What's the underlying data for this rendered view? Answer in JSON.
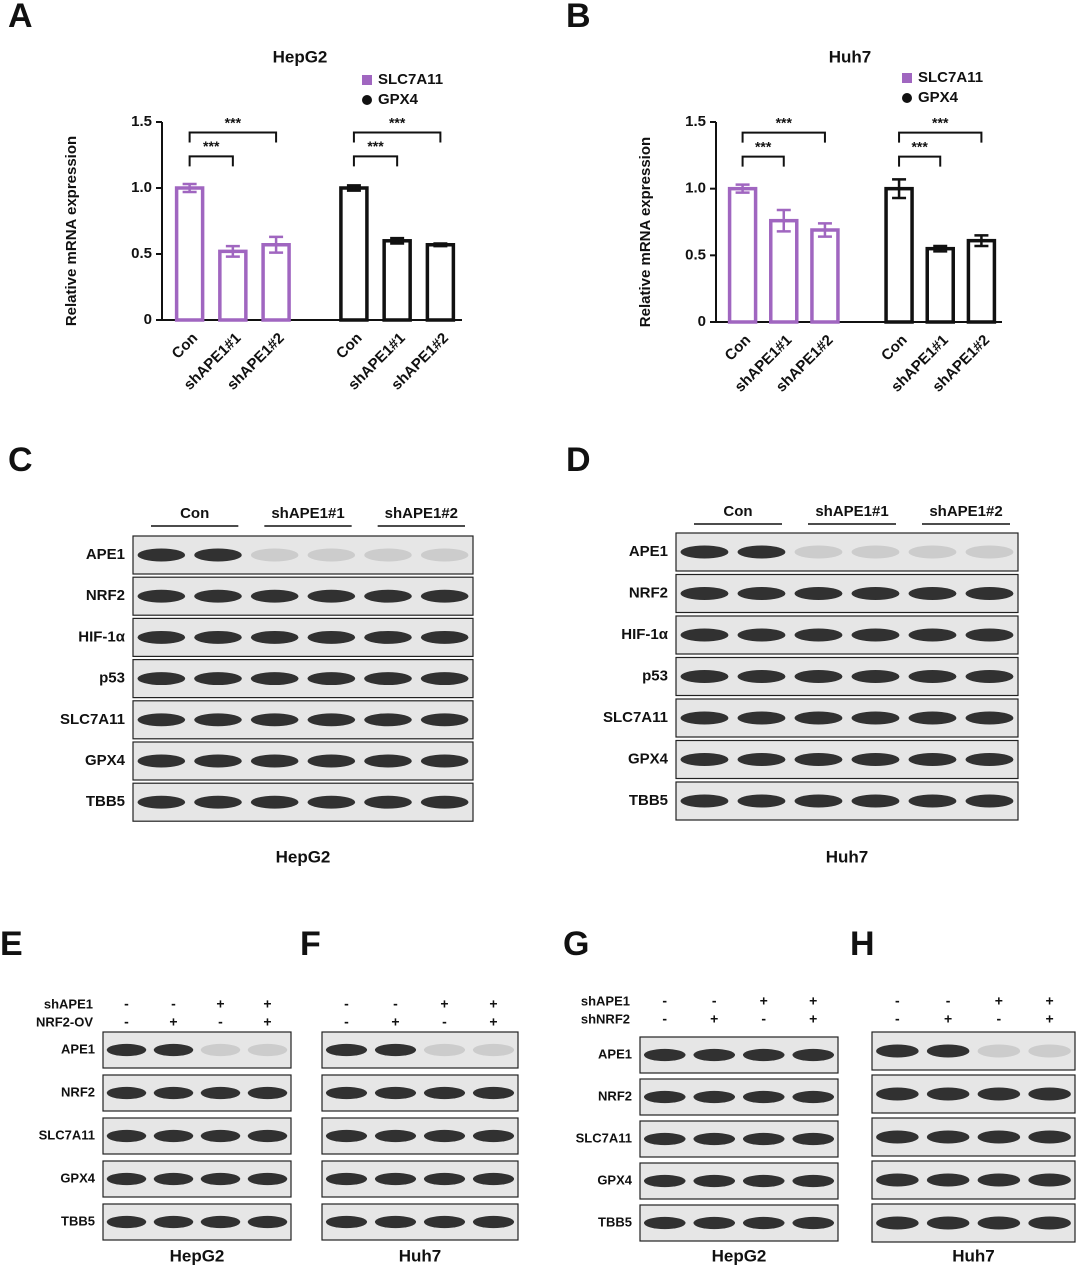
{
  "chart_data": [
    {
      "type": "bar",
      "title": "HepG2",
      "ylabel": "Relative mRNA expression",
      "categories": [
        "Con",
        "shAPE1#1",
        "shAPE1#2",
        "Con",
        "shAPE1#1",
        "shAPE1#2"
      ],
      "series": [
        {
          "name": "SLC7A11",
          "color": "#a066c0",
          "marker": "square",
          "values": [
            1.0,
            0.52,
            0.57,
            null,
            null,
            null
          ],
          "errors": [
            0.03,
            0.04,
            0.06,
            null,
            null,
            null
          ]
        },
        {
          "name": "GPX4",
          "color": "#111111",
          "marker": "circle",
          "values": [
            null,
            null,
            null,
            1.0,
            0.6,
            0.57
          ],
          "errors": [
            null,
            null,
            null,
            0.02,
            0.02,
            0.01
          ]
        }
      ],
      "ylim": [
        0,
        1.5
      ],
      "yticks": [
        0,
        0.5,
        {
          "value": 1,
          "label": "1.0"
        },
        1.5
      ],
      "annotations": [
        "***",
        "***",
        "***",
        "***"
      ]
    },
    {
      "type": "bar",
      "title": "Huh7",
      "ylabel": "Relative mRNA expression",
      "categories": [
        "Con",
        "shAPE1#1",
        "shAPE1#2",
        "Con",
        "shAPE1#1",
        "shAPE1#2"
      ],
      "series": [
        {
          "name": "SLC7A11",
          "color": "#a066c0",
          "marker": "square",
          "values": [
            1.0,
            0.76,
            0.69,
            null,
            null,
            null
          ],
          "errors": [
            0.03,
            0.08,
            0.05,
            null,
            null,
            null
          ]
        },
        {
          "name": "GPX4",
          "color": "#111111",
          "marker": "circle",
          "values": [
            null,
            null,
            null,
            1.0,
            0.55,
            0.61
          ],
          "errors": [
            null,
            null,
            null,
            0.07,
            0.02,
            0.04
          ]
        }
      ],
      "ylim": [
        0,
        1.5
      ],
      "yticks": [
        0,
        0.5,
        {
          "value": 1,
          "label": "1.0"
        },
        1.5
      ],
      "annotations": [
        "***",
        "***",
        "***",
        "***"
      ]
    }
  ],
  "panels": [
    "A",
    "B",
    "C",
    "D",
    "E",
    "F",
    "G",
    "H"
  ],
  "blots": [
    {
      "cell_line": "HepG2",
      "groups": [
        "Con",
        "shAPE1#1",
        "shAPE1#2"
      ],
      "rows": [
        "APE1",
        "NRF2",
        "HIF-1α",
        "p53",
        "SLC7A11",
        "GPX4",
        "TBB5"
      ]
    },
    {
      "cell_line": "Huh7",
      "groups": [
        "Con",
        "shAPE1#1",
        "shAPE1#2"
      ],
      "rows": [
        "APE1",
        "NRF2",
        "HIF-1α",
        "p53",
        "SLC7A11",
        "GPX4",
        "TBB5"
      ]
    },
    {
      "cell_line": "HepG2",
      "treatments": [
        {
          "name": "shAPE1",
          "signs": [
            "-",
            "-",
            "+",
            "+"
          ]
        },
        {
          "name": "NRF2-OV",
          "signs": [
            "-",
            "+",
            "-",
            "+"
          ]
        }
      ],
      "rows": [
        "APE1",
        "NRF2",
        "SLC7A11",
        "GPX4",
        "TBB5"
      ]
    },
    {
      "cell_line": "Huh7",
      "treatments": [
        {
          "signs": [
            "-",
            "-",
            "+",
            "+"
          ]
        },
        {
          "signs": [
            "-",
            "+",
            "-",
            "+"
          ]
        }
      ]
    },
    {
      "cell_line": "HepG2",
      "treatments": [
        {
          "name": "shAPE1",
          "signs": [
            "-",
            "-",
            "+",
            "+"
          ]
        },
        {
          "name": "shNRF2",
          "signs": [
            "-",
            "+",
            "-",
            "+"
          ]
        }
      ],
      "rows": [
        "APE1",
        "NRF2",
        "SLC7A11",
        "GPX4",
        "TBB5"
      ]
    },
    {
      "cell_line": "Huh7",
      "treatments": [
        {
          "signs": [
            "-",
            "-",
            "+",
            "+"
          ]
        },
        {
          "signs": [
            "-",
            "+",
            "-",
            "+"
          ]
        }
      ]
    }
  ]
}
